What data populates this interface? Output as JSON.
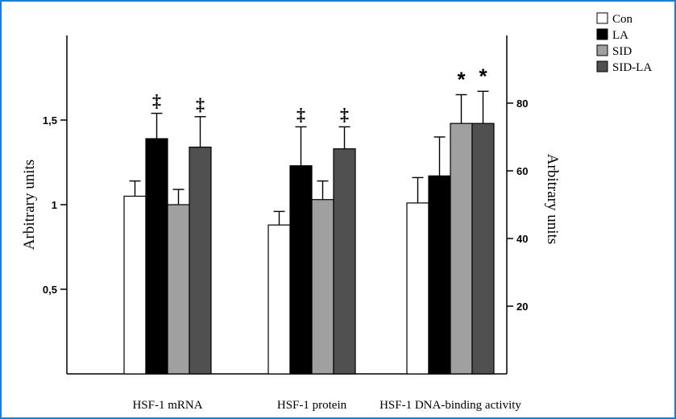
{
  "chart_data": {
    "type": "bar",
    "categories": [
      "HSF-1 mRNA",
      "HSF-1 protein",
      "HSF-1 DNA-binding activity"
    ],
    "series": [
      {
        "name": "Con",
        "color": "#ffffff",
        "values": [
          1.05,
          0.88,
          1.01
        ],
        "errors": [
          0.09,
          0.08,
          0.15
        ],
        "annotations": [
          "",
          "",
          ""
        ]
      },
      {
        "name": "LA",
        "color": "#000000",
        "values": [
          1.39,
          1.23,
          1.17
        ],
        "errors": [
          0.15,
          0.23,
          0.23
        ],
        "annotations": [
          "‡",
          "‡",
          ""
        ]
      },
      {
        "name": "SID",
        "color": "#a0a0a0",
        "values": [
          1.0,
          1.03,
          1.48
        ],
        "errors": [
          0.09,
          0.11,
          0.17
        ],
        "annotations": [
          "",
          "",
          "*"
        ]
      },
      {
        "name": "SID-LA",
        "color": "#505050",
        "values": [
          1.34,
          1.33,
          1.48
        ],
        "errors": [
          0.18,
          0.13,
          0.19
        ],
        "annotations": [
          "‡",
          "‡",
          "*"
        ]
      }
    ],
    "y_left": {
      "label": "Arbitrary units",
      "ylim": [
        0,
        2.0
      ],
      "ticks": [
        0.5,
        1,
        1.5
      ],
      "tick_labels": [
        "0,5",
        "1",
        "1,5"
      ]
    },
    "y_right": {
      "label": "Arbitrary units",
      "ylim": [
        0,
        100
      ],
      "ticks": [
        20,
        40,
        60,
        80
      ],
      "tick_labels": [
        "20",
        "40",
        "60",
        "80"
      ]
    },
    "legend_position": "top-right",
    "grid": false
  }
}
